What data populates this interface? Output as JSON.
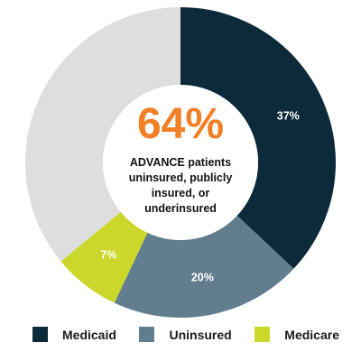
{
  "colors": {
    "medicaid": "#0d2a3a",
    "uninsured": "#627d8e",
    "medicare": "#cbd72b",
    "other": "#dedede",
    "accent": "#f07f26"
  },
  "center": {
    "headline": "64%",
    "description": "ADVANCE patients uninsured, publicly insured, or underinsured"
  },
  "chart_data": {
    "type": "pie",
    "variant": "donut",
    "start": "top, clockwise",
    "slices": [
      {
        "name": "Medicaid",
        "value": 37,
        "label": "37%",
        "color": "#0d2a3a"
      },
      {
        "name": "Uninsured",
        "value": 20,
        "label": "20%",
        "color": "#627d8e"
      },
      {
        "name": "Medicare",
        "value": 7,
        "label": "7%",
        "color": "#cbd72b"
      },
      {
        "value": 36,
        "label": "",
        "color": "#dedede"
      }
    ],
    "legend": {
      "placement": "bottom",
      "items": [
        {
          "label": "Medicaid",
          "color": "#0d2a3a"
        },
        {
          "label": "Uninsured",
          "color": "#627d8e"
        },
        {
          "label": "Medicare",
          "color": "#cbd72b"
        }
      ]
    }
  }
}
